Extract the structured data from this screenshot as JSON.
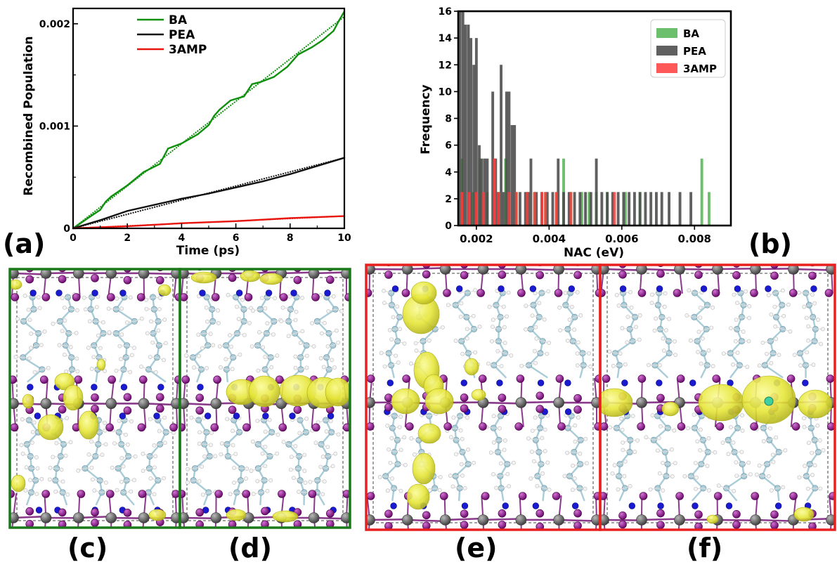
{
  "chart_data": [
    {
      "panel": "(a)",
      "type": "line",
      "xlabel": "Time (ps)",
      "ylabel": "Recombined Population",
      "xlim": [
        0,
        10
      ],
      "ylim": [
        0,
        0.00215
      ],
      "x_ticks": [
        0,
        2,
        4,
        6,
        8,
        10
      ],
      "x_tick_labels": [
        "0",
        "2",
        "4",
        "6",
        "8",
        "10"
      ],
      "y_ticks": [
        0,
        0.001,
        0.002
      ],
      "y_tick_labels": [
        "0",
        "0.001",
        "0.002"
      ],
      "legend_position": "top-left",
      "series": [
        {
          "name": "BA",
          "color": "#11900f",
          "fit": {
            "x": [
              0,
              10
            ],
            "y": [
              0,
              0.00207
            ]
          },
          "x": [
            0,
            0.6,
            1.0,
            1.2,
            1.4,
            2.0,
            2.6,
            3.2,
            3.5,
            3.7,
            4.0,
            4.6,
            5.0,
            5.2,
            5.4,
            5.8,
            6.3,
            6.6,
            6.9,
            7.4,
            7.9,
            8.3,
            8.8,
            9.2,
            9.6,
            9.8,
            10.0
          ],
          "y": [
            0,
            0.00011,
            0.00018,
            0.00026,
            0.00031,
            0.00042,
            0.00055,
            0.00063,
            0.00078,
            0.0008,
            0.00083,
            0.00092,
            0.00101,
            0.0011,
            0.00116,
            0.00125,
            0.00129,
            0.00141,
            0.00143,
            0.00148,
            0.00158,
            0.0017,
            0.00177,
            0.00184,
            0.00193,
            0.00203,
            0.00212
          ]
        },
        {
          "name": "PEA",
          "color": "#111111",
          "fit": {
            "x": [
              0,
              10
            ],
            "y": [
              0,
              0.00069
            ]
          },
          "x": [
            0,
            1,
            2,
            3,
            4,
            5,
            6,
            7,
            8,
            9,
            10
          ],
          "y": [
            0,
            8e-05,
            0.00017,
            0.00023,
            0.00029,
            0.00034,
            0.0004,
            0.00046,
            0.00053,
            0.00061,
            0.00069
          ]
        },
        {
          "name": "3AMP",
          "color": "#e8150f",
          "fit": {
            "x": [
              0,
              10
            ],
            "y": [
              0,
              0.00012
            ]
          },
          "x": [
            0,
            2,
            4,
            6,
            8,
            10
          ],
          "y": [
            0,
            2e-05,
            5e-05,
            7e-05,
            0.0001,
            0.00012
          ]
        }
      ]
    },
    {
      "panel": "(b)",
      "type": "bar",
      "xlabel": "NAC (eV)",
      "ylabel": "Frequency",
      "xlim": [
        0.0015,
        0.009
      ],
      "ylim": [
        0,
        16
      ],
      "x_ticks": [
        0.002,
        0.004,
        0.006,
        0.008
      ],
      "x_tick_labels": [
        "0.002",
        "0.004",
        "0.006",
        "0.008"
      ],
      "y_ticks": [
        0,
        2,
        4,
        6,
        8,
        10,
        12,
        14,
        16
      ],
      "y_tick_labels": [
        "0",
        "2",
        "4",
        "6",
        "8",
        "10",
        "12",
        "14",
        "16"
      ],
      "legend_position": "top-right",
      "bin_width": 7.5e-05,
      "series": [
        {
          "name": "BA",
          "color": "#5cb85c",
          "opacity": 0.9,
          "bins": [
            0.0016,
            0.0019,
            0.0021,
            0.0023,
            0.0026,
            0.0028,
            0.0031,
            0.0034,
            0.0036,
            0.0039,
            0.0042,
            0.0044,
            0.0046,
            0.0049,
            0.0051,
            0.0053,
            0.0056,
            0.0061,
            0.0065,
            0.0082,
            0.0084
          ],
          "values": [
            5,
            2.5,
            5,
            2.5,
            2.5,
            5,
            2.5,
            2.5,
            2.5,
            2.5,
            2.5,
            5,
            2.5,
            2.5,
            2.5,
            2.5,
            2.5,
            2.5,
            2.5,
            5,
            2.5
          ]
        },
        {
          "name": "PEA",
          "color": "#4a4a4a",
          "opacity": 0.88,
          "bins": [
            0.00155,
            0.00163,
            0.0017,
            0.00178,
            0.00185,
            0.00193,
            0.002,
            0.00208,
            0.00215,
            0.00223,
            0.0023,
            0.00245,
            0.00253,
            0.0026,
            0.00268,
            0.00275,
            0.00283,
            0.0029,
            0.00298,
            0.00305,
            0.0032,
            0.00335,
            0.00343,
            0.0035,
            0.00365,
            0.0038,
            0.00395,
            0.0041,
            0.00425,
            0.0044,
            0.00455,
            0.0047,
            0.00485,
            0.005,
            0.00515,
            0.0053,
            0.00545,
            0.0056,
            0.00575,
            0.0059,
            0.00605,
            0.0062,
            0.00635,
            0.0065,
            0.00665,
            0.0068,
            0.00695,
            0.0071,
            0.0073,
            0.0076,
            0.0079
          ],
          "values": [
            16,
            16,
            15,
            15,
            14,
            12,
            14,
            6,
            5,
            5,
            5,
            10,
            5,
            2.5,
            12,
            2.5,
            10,
            10,
            7.5,
            7.5,
            2.5,
            2.5,
            2.5,
            5,
            2.5,
            2.5,
            2.5,
            2.5,
            5,
            2.5,
            2.5,
            2.5,
            2.5,
            2.5,
            2.5,
            5,
            2.5,
            2.5,
            2.5,
            2.5,
            2.5,
            2.5,
            2.5,
            2.5,
            2.5,
            2.5,
            2.5,
            2.5,
            2.5,
            2.5,
            2.5
          ]
        },
        {
          "name": "3AMP",
          "color": "#ff3b3b",
          "opacity": 0.85,
          "bins": [
            0.0016,
            0.0018,
            0.002,
            0.0022,
            0.0025,
            0.0026,
            0.0029,
            0.0031,
            0.0034,
            0.0036,
            0.0038,
            0.0039,
            0.0042,
            0.0046,
            0.0058
          ],
          "values": [
            2.5,
            2.5,
            2.5,
            2.5,
            5,
            2.5,
            2.5,
            2.5,
            2.5,
            2.5,
            2.5,
            2.5,
            2.5,
            2.5,
            2.5
          ]
        }
      ]
    }
  ],
  "panels": {
    "a": "(a)",
    "b": "(b)",
    "c": "(c)",
    "d": "(d)",
    "e": "(e)",
    "f": "(f)"
  },
  "structures": {
    "frame_colors": {
      "c": "#1a7a1a",
      "d": "#1a7a1a",
      "e": "#e82020",
      "f": "#e82020"
    },
    "atom_colors": {
      "lead": "#707070",
      "iodine": "#8a1a8a",
      "nitrogen": "#1a1ad0",
      "carbon": "#a8ccd8",
      "hydrogen": "#f4f4f4",
      "orbital": "#e8e82a"
    }
  }
}
